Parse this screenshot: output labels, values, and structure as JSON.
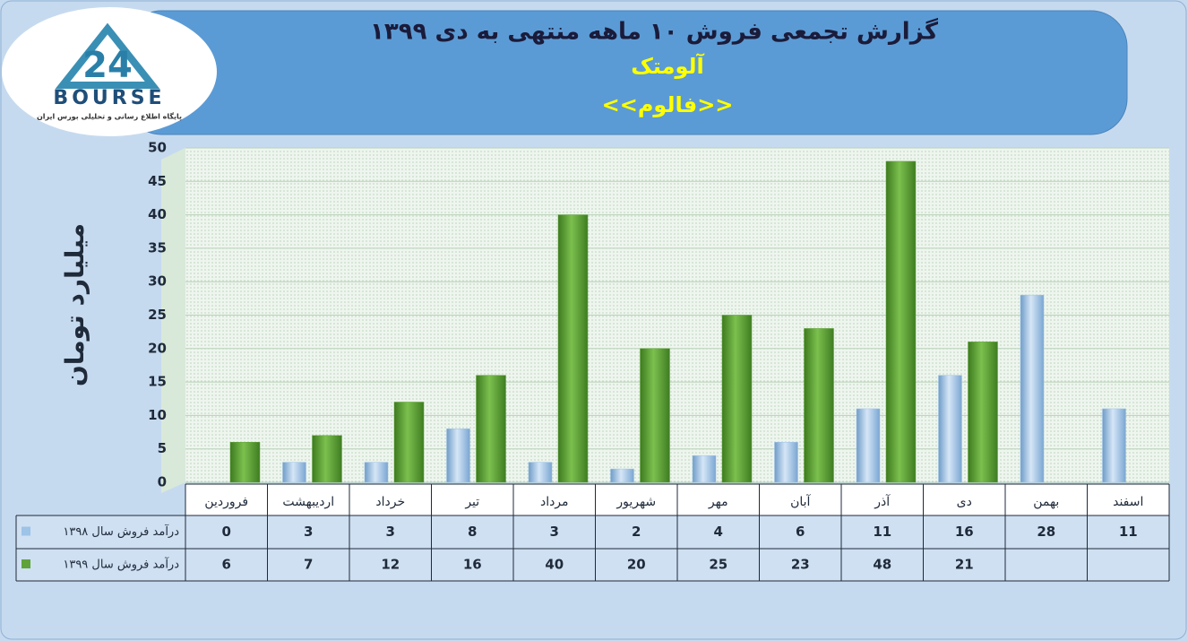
{
  "logo": {
    "number": "24",
    "name": "BOURSE",
    "tagline": "پایگاه اطلاع رسانی و تحلیلی بورس ایران"
  },
  "chart_data": {
    "type": "bar",
    "title": "گزارش تجمعی فروش ۱۰ ماهه منتهی به دی ۱۳۹۹",
    "subtitle": "آلومتک",
    "symbol": "<<فالوم>>",
    "y_label": "میلیارد تومان",
    "categories": [
      "فروردین",
      "اردیبهشت",
      "خرداد",
      "تیر",
      "مرداد",
      "شهریور",
      "مهر",
      "آبان",
      "آذر",
      "دی",
      "بهمن",
      "اسفند"
    ],
    "series": [
      {
        "name": "درآمد فروش سال ۱۳۹۸",
        "color": "#9dc3e6",
        "values": [
          0,
          3,
          3,
          8,
          3,
          2,
          4,
          6,
          11,
          16,
          28,
          11
        ]
      },
      {
        "name": "درآمد فروش سال ۱۳۹۹",
        "color": "#5fa33a",
        "values": [
          6,
          7,
          12,
          16,
          40,
          20,
          25,
          23,
          48,
          21,
          null,
          null
        ]
      }
    ],
    "ylim": [
      0,
      50
    ],
    "yticks": [
      0,
      5,
      10,
      15,
      20,
      25,
      30,
      35,
      40,
      45,
      50
    ],
    "grid": true
  }
}
